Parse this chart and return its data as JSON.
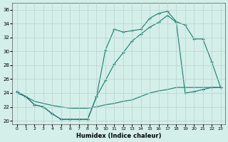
{
  "xlabel": "Humidex (Indice chaleur)",
  "ylabel": "",
  "xlim": [
    -0.5,
    23.5
  ],
  "ylim": [
    19.5,
    37
  ],
  "yticks": [
    20,
    22,
    24,
    26,
    28,
    30,
    32,
    34,
    36
  ],
  "xticks": [
    0,
    1,
    2,
    3,
    4,
    5,
    6,
    7,
    8,
    9,
    10,
    11,
    12,
    13,
    14,
    15,
    16,
    17,
    18,
    19,
    20,
    21,
    22,
    23
  ],
  "bg_color": "#d4eeea",
  "grid_color": "#b8d4d0",
  "line_color": "#1a7a6e",
  "line1_x": [
    0,
    1,
    2,
    3,
    4,
    5,
    6,
    7,
    8,
    9,
    10,
    11,
    12,
    13,
    14,
    15,
    16,
    17,
    18,
    19,
    20,
    21,
    22,
    23
  ],
  "line1_y": [
    24.2,
    23.5,
    22.3,
    22.0,
    21.0,
    20.2,
    20.2,
    20.2,
    20.2,
    23.5,
    30.2,
    33.2,
    32.8,
    33.0,
    33.2,
    34.8,
    35.5,
    35.8,
    34.3,
    33.8,
    31.8,
    31.8,
    28.5,
    24.8
  ],
  "line2_x": [
    0,
    1,
    2,
    3,
    4,
    5,
    6,
    7,
    8,
    9,
    10,
    11,
    12,
    13,
    14,
    15,
    16,
    17,
    18,
    19,
    20,
    21,
    22,
    23
  ],
  "line2_y": [
    24.2,
    23.5,
    22.3,
    22.0,
    21.0,
    20.2,
    20.2,
    20.2,
    20.2,
    23.5,
    25.8,
    28.2,
    29.8,
    31.5,
    32.5,
    33.5,
    34.2,
    35.2,
    34.2,
    24.0,
    24.2,
    24.5,
    24.8,
    24.8
  ],
  "line3_x": [
    0,
    1,
    2,
    3,
    4,
    5,
    6,
    7,
    8,
    9,
    10,
    11,
    12,
    13,
    14,
    15,
    16,
    17,
    18,
    19,
    20,
    21,
    22,
    23
  ],
  "line3_y": [
    24.0,
    23.5,
    22.8,
    22.5,
    22.2,
    22.0,
    21.8,
    21.8,
    21.8,
    22.0,
    22.3,
    22.5,
    22.8,
    23.0,
    23.5,
    24.0,
    24.3,
    24.5,
    24.8,
    24.8,
    24.8,
    24.8,
    24.8,
    24.8
  ]
}
